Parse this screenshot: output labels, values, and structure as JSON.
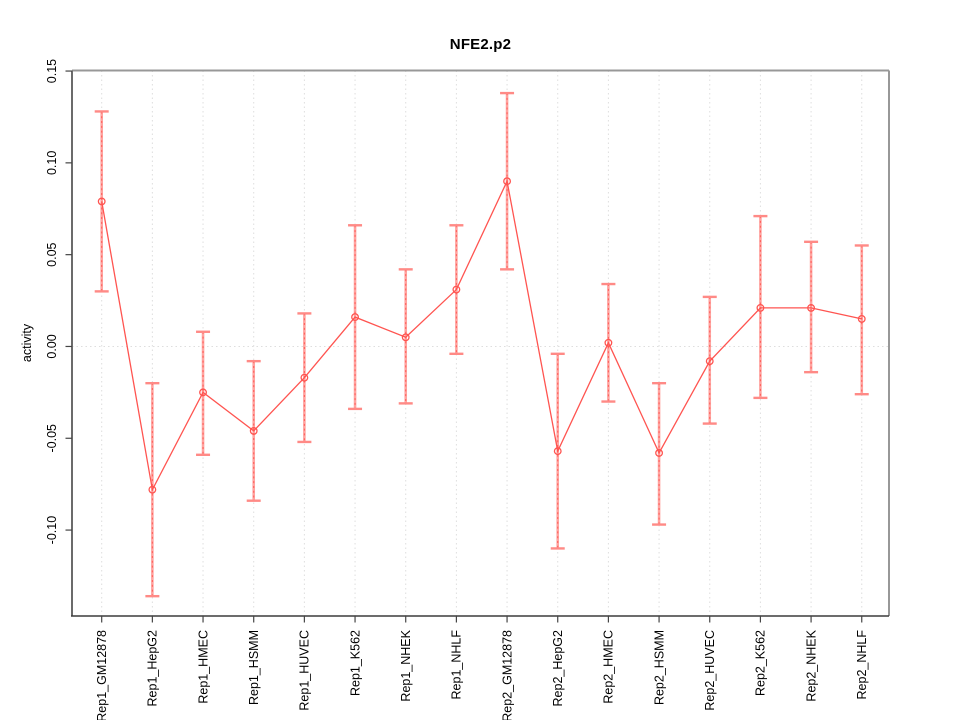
{
  "chart_data": {
    "type": "line",
    "title": "NFE2.p2",
    "xlabel": "",
    "ylabel": "activity",
    "categories": [
      "Rep1_GM12878",
      "Rep1_HepG2",
      "Rep1_HMEC",
      "Rep1_HSMM",
      "Rep1_HUVEC",
      "Rep1_K562",
      "Rep1_NHEK",
      "Rep1_NHLF",
      "Rep2_GM12878",
      "Rep2_HepG2",
      "Rep2_HMEC",
      "Rep2_HSMM",
      "Rep2_HUVEC",
      "Rep2_K562",
      "Rep2_NHEK",
      "Rep2_NHLF"
    ],
    "series": [
      {
        "name": "activity",
        "values": [
          0.079,
          -0.078,
          -0.025,
          -0.046,
          -0.017,
          0.016,
          0.005,
          0.031,
          0.09,
          -0.057,
          0.002,
          -0.058,
          -0.008,
          0.021,
          0.021,
          0.015
        ],
        "ci_low": [
          0.03,
          -0.136,
          -0.059,
          -0.084,
          -0.052,
          -0.034,
          -0.031,
          -0.004,
          0.042,
          -0.11,
          -0.03,
          -0.097,
          -0.042,
          -0.028,
          -0.014,
          -0.026
        ],
        "ci_high": [
          0.128,
          -0.02,
          0.008,
          -0.008,
          0.018,
          0.066,
          0.042,
          0.066,
          0.138,
          -0.004,
          0.034,
          -0.02,
          0.027,
          0.071,
          0.057,
          0.055
        ]
      }
    ],
    "yticks": [
      0.15,
      0.1,
      0.05,
      0.0,
      -0.05,
      -0.1
    ],
    "ytick_labels": [
      "0.15",
      "0.10",
      "0.05",
      "0.00",
      "-0.05",
      "-0.10"
    ],
    "ylim": [
      -0.1468,
      0.1503
    ],
    "legend": "none",
    "grid": {
      "vertical_dotted_per_category": true,
      "horizontal_dotted_at_zero": true
    },
    "marker": "open-circle",
    "colors": {
      "line": "#ff5450",
      "point_stroke": "#ff5450",
      "error_bar": "#ffa4a0",
      "error_bar_dash": "#ff5450",
      "error_cap": "#ff8a86",
      "grid": "#dedede",
      "box": "#989898",
      "box_left": "#6b6b6b",
      "axis_bottom": "#3c3c3c",
      "tick": "#454545",
      "text": "#000000"
    }
  }
}
